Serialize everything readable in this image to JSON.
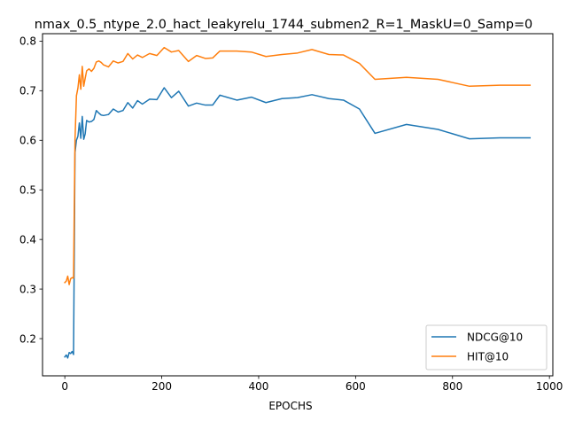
{
  "chart_data": {
    "type": "line",
    "title": "nmax_0.5_ntype_2.0_hact_leakyrelu_1744_submen2_R=1_MaskU=0_Samp=0",
    "xlabel": "EPOCHS",
    "ylabel": "",
    "xlim": [
      -46,
      1007
    ],
    "ylim": [
      0.125,
      0.815
    ],
    "x_ticks": [
      0,
      200,
      400,
      600,
      800,
      1000
    ],
    "y_ticks": [
      0.2,
      0.3,
      0.4,
      0.5,
      0.6,
      0.7,
      0.8
    ],
    "grid": false,
    "legend_position": "lower-right",
    "series": [
      {
        "name": "NDCG@10",
        "color": "#1f77b4",
        "x": [
          0,
          3,
          6,
          9,
          12,
          15,
          18,
          21,
          24,
          27,
          30,
          33,
          36,
          39,
          42,
          45,
          50,
          55,
          60,
          65,
          70,
          75,
          80,
          90,
          100,
          110,
          120,
          130,
          140,
          150,
          160,
          175,
          190,
          205,
          220,
          235,
          255,
          272,
          290,
          305,
          320,
          355,
          385,
          415,
          448,
          480,
          510,
          545,
          575,
          608,
          640,
          705,
          770,
          835,
          898,
          960
        ],
        "y": [
          0.163,
          0.167,
          0.161,
          0.172,
          0.17,
          0.174,
          0.168,
          0.575,
          0.6,
          0.608,
          0.635,
          0.604,
          0.648,
          0.602,
          0.613,
          0.64,
          0.637,
          0.638,
          0.642,
          0.66,
          0.655,
          0.651,
          0.65,
          0.652,
          0.663,
          0.657,
          0.66,
          0.676,
          0.665,
          0.68,
          0.673,
          0.683,
          0.682,
          0.706,
          0.686,
          0.699,
          0.669,
          0.675,
          0.671,
          0.671,
          0.691,
          0.681,
          0.687,
          0.676,
          0.684,
          0.686,
          0.692,
          0.684,
          0.681,
          0.663,
          0.614,
          0.632,
          0.622,
          0.603,
          0.605,
          0.605
        ]
      },
      {
        "name": "HIT@10",
        "color": "#ff7f0e",
        "x": [
          0,
          3,
          6,
          9,
          12,
          15,
          18,
          21,
          24,
          27,
          30,
          33,
          36,
          39,
          42,
          45,
          50,
          55,
          60,
          65,
          70,
          75,
          80,
          90,
          100,
          110,
          120,
          130,
          140,
          150,
          160,
          175,
          190,
          205,
          220,
          235,
          255,
          272,
          290,
          305,
          320,
          355,
          385,
          415,
          448,
          480,
          510,
          545,
          575,
          608,
          640,
          705,
          770,
          835,
          898,
          960
        ],
        "y": [
          0.313,
          0.316,
          0.326,
          0.309,
          0.321,
          0.323,
          0.322,
          0.6,
          0.69,
          0.705,
          0.732,
          0.703,
          0.749,
          0.709,
          0.725,
          0.74,
          0.744,
          0.739,
          0.745,
          0.758,
          0.76,
          0.757,
          0.752,
          0.748,
          0.76,
          0.756,
          0.759,
          0.775,
          0.764,
          0.772,
          0.767,
          0.775,
          0.771,
          0.787,
          0.778,
          0.781,
          0.759,
          0.771,
          0.765,
          0.766,
          0.78,
          0.78,
          0.778,
          0.769,
          0.773,
          0.776,
          0.783,
          0.773,
          0.772,
          0.755,
          0.723,
          0.727,
          0.723,
          0.709,
          0.711,
          0.711
        ]
      }
    ]
  }
}
